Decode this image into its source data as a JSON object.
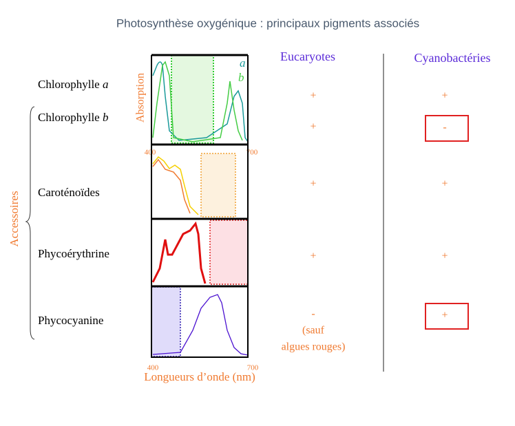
{
  "header": {
    "title": "Photosynthèse oxygénique : principaux pigments associés"
  },
  "columns": {
    "eukaryotes": "Eucaryotes",
    "cyanobacteria": "Cyanobactéries"
  },
  "group_label": "Accessoires",
  "spectra": {
    "y_label": "Absorption",
    "x_label": "Longueurs d’onde (nm)",
    "x_min_label": "400",
    "x_max_label": "700",
    "legend": [
      "a",
      "b"
    ]
  },
  "rows": [
    {
      "name": "Chlorophylle",
      "variant": "a",
      "eukaryotes": "+",
      "cyanobacteria": "+"
    },
    {
      "name": "Chlorophylle",
      "variant": "b",
      "eukaryotes": "+",
      "cyanobacteria": "-"
    },
    {
      "name": "Caroténoïdes",
      "eukaryotes": "+",
      "cyanobacteria": "+"
    },
    {
      "name": "Phycoérythrine",
      "eukaryotes": "+",
      "cyanobacteria": "+"
    },
    {
      "name": "Phycocyanine",
      "eukaryotes": "-",
      "eukaryotes_note": [
        "(sauf",
        "algues rouges)"
      ],
      "cyanobacteria": "+"
    }
  ]
}
